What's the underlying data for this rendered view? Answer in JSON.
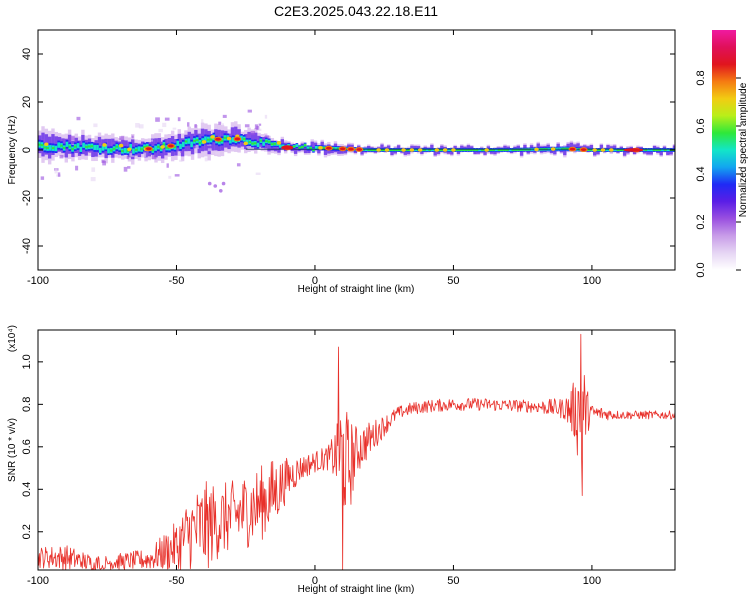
{
  "title": "C2E3.2025.043.22.18.E11",
  "colorbar": {
    "label": "Normalized spectral amplitude",
    "ticks": [
      "0.0",
      "0.2",
      "0.4",
      "0.6",
      "0.8"
    ],
    "stops": [
      "#ffffff",
      "#e6d6f4",
      "#c89ce8",
      "#9a50e0",
      "#5a1ee6",
      "#1f2af5",
      "#12a6f0",
      "#12e6c8",
      "#2ee83a",
      "#b9ef19",
      "#f2cc12",
      "#f57a12",
      "#e0151e",
      "#e0105a",
      "#f01aa0"
    ]
  },
  "chart_data": [
    {
      "type": "heatmap",
      "xlabel": "Height of straight line (km)",
      "ylabel": "Frequency (Hz)",
      "xlim": [
        -100,
        130
      ],
      "ylim": [
        -50,
        50
      ],
      "xticks": [
        -100,
        -50,
        0,
        50,
        100
      ],
      "yticks": [
        40,
        20,
        0,
        -20,
        -40
      ],
      "ridge": {
        "x": [
          -100,
          -90,
          -80,
          -70,
          -60,
          -50,
          -40,
          -30,
          -20,
          -10,
          0,
          10,
          20,
          30,
          50,
          70,
          90,
          100,
          130
        ],
        "center_hz": [
          2,
          1.5,
          1,
          0.5,
          0.5,
          2,
          4,
          5,
          3,
          1,
          1,
          0.5,
          0,
          0,
          0,
          0,
          0.5,
          0,
          0
        ],
        "spread_hz": [
          6,
          5,
          5,
          5,
          5,
          5,
          6,
          5,
          4,
          2,
          2.5,
          2,
          1.5,
          1.5,
          1.5,
          1.5,
          2,
          1.5,
          1.5
        ]
      },
      "hotspots_x": [
        -60,
        -52,
        -35,
        -28,
        -10,
        5,
        10,
        13,
        16,
        93,
        97,
        116
      ]
    },
    {
      "type": "line",
      "xlabel": "Height of straight line (km)",
      "ylabel": "SNR (10 * v/v)",
      "yscale_label": "(x10⁴)",
      "xlim": [
        -100,
        130
      ],
      "ylim": [
        0.02,
        1.15
      ],
      "xticks": [
        -100,
        -50,
        0,
        50,
        100
      ],
      "yticks": [
        0.2,
        0.4,
        0.6,
        0.8,
        1.0
      ],
      "color": "#e8302a",
      "envelope": {
        "x": [
          -100,
          -90,
          -80,
          -70,
          -60,
          -50,
          -45,
          -40,
          -35,
          -30,
          -25,
          -20,
          -15,
          -10,
          -5,
          0,
          5,
          8,
          10,
          12,
          15,
          20,
          25,
          30,
          35,
          40,
          50,
          60,
          80,
          90,
          94,
          96,
          98,
          100,
          110,
          120,
          130
        ],
        "mean": [
          0.08,
          0.08,
          0.05,
          0.06,
          0.07,
          0.13,
          0.2,
          0.22,
          0.25,
          0.27,
          0.3,
          0.33,
          0.38,
          0.45,
          0.5,
          0.53,
          0.55,
          0.56,
          0.57,
          0.5,
          0.58,
          0.64,
          0.7,
          0.76,
          0.78,
          0.79,
          0.8,
          0.8,
          0.79,
          0.78,
          0.77,
          0.78,
          0.77,
          0.76,
          0.75,
          0.75,
          0.75
        ],
        "amplitude": [
          0.05,
          0.06,
          0.04,
          0.04,
          0.05,
          0.12,
          0.18,
          0.22,
          0.18,
          0.17,
          0.18,
          0.18,
          0.17,
          0.1,
          0.06,
          0.05,
          0.06,
          0.15,
          0.3,
          0.25,
          0.12,
          0.08,
          0.05,
          0.03,
          0.03,
          0.03,
          0.03,
          0.03,
          0.03,
          0.05,
          0.15,
          0.35,
          0.12,
          0.04,
          0.02,
          0.02,
          0.02
        ]
      },
      "spikes": [
        {
          "x": 8.5,
          "y": 1.07
        },
        {
          "x": 10,
          "y": 0.02
        },
        {
          "x": 96,
          "y": 1.13
        },
        {
          "x": 96.6,
          "y": 0.37
        }
      ]
    }
  ]
}
